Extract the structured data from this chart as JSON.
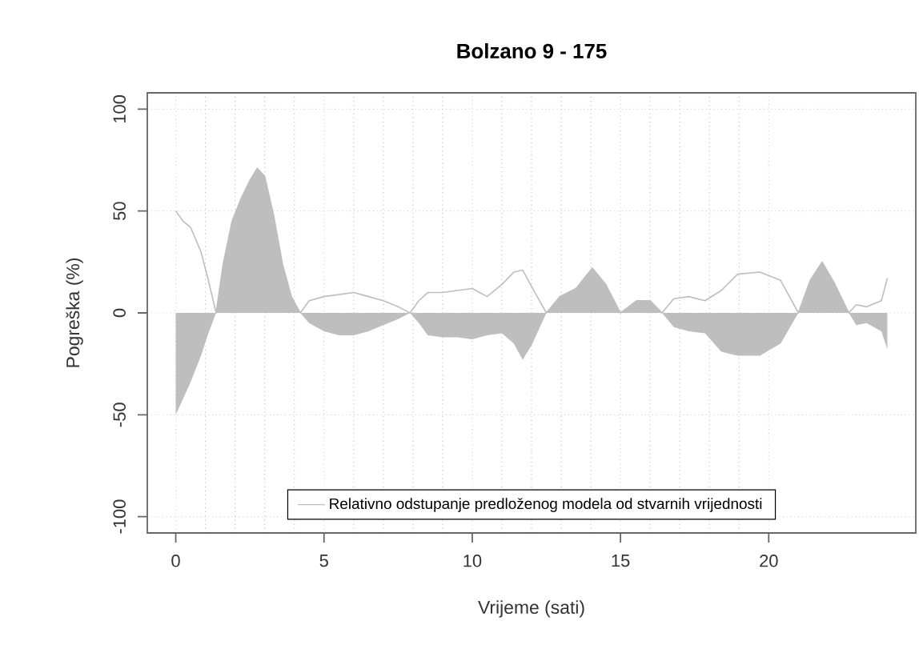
{
  "chart_data": {
    "type": "line",
    "title": "Bolzano 9 - 175",
    "xlabel": "Vrijeme (sati)",
    "ylabel": "Pogreška (%)",
    "x": [
      0,
      0.25,
      0.5,
      0.85,
      1.1,
      1.36,
      1.6,
      1.9,
      2.2,
      2.5,
      2.75,
      3.0,
      3.3,
      3.6,
      3.9,
      4.2,
      4.5,
      5.0,
      5.5,
      6.0,
      6.5,
      7.0,
      7.5,
      7.9,
      8.2,
      8.5,
      9.0,
      9.5,
      10.0,
      10.5,
      11.0,
      11.4,
      11.7,
      12.0,
      12.5,
      12.95,
      13.5,
      14.05,
      14.5,
      15.0,
      15.55,
      16.0,
      16.4,
      16.8,
      17.3,
      17.85,
      18.4,
      18.95,
      19.7,
      20.4,
      21.0,
      21.4,
      21.8,
      22.2,
      22.7,
      22.95,
      23.3,
      23.8,
      24.0
    ],
    "series": [
      {
        "type": "area",
        "color": "#bebebe",
        "values": [
          -50,
          -42,
          -34,
          -21,
          -10,
          0,
          24,
          45,
          56,
          65,
          71,
          67,
          48,
          24,
          8,
          0,
          -5,
          -9,
          -11,
          -11,
          -9,
          -6,
          -3,
          0,
          -5,
          -11,
          -12,
          -12,
          -13,
          -11,
          -10,
          -15,
          -23,
          -16,
          0,
          8,
          12,
          22,
          14,
          0,
          6,
          6,
          0,
          -7,
          -9,
          -10,
          -19,
          -21,
          -21,
          -15,
          0,
          16,
          25,
          15,
          0,
          -6,
          -5,
          -9,
          -18
        ]
      },
      {
        "name": "Relativno odstupanje predloženog modela od stvarnih vrijednosti",
        "color": "#bebebe",
        "values": [
          50,
          45,
          42,
          30,
          16,
          0,
          24,
          45,
          56,
          65,
          71,
          67,
          48,
          24,
          8,
          0,
          6,
          8,
          9,
          10,
          8,
          6,
          3,
          0,
          6,
          10,
          10,
          11,
          12,
          8,
          14,
          20,
          21,
          13,
          0,
          8,
          12,
          22,
          14,
          0,
          6,
          6,
          0,
          7,
          8,
          6,
          11,
          19,
          20,
          16,
          0,
          16,
          25,
          15,
          0,
          4,
          3,
          6,
          17
        ]
      }
    ],
    "xlim": [
      -0.96,
      24.96
    ],
    "ylim": [
      -108,
      108
    ],
    "xticks": [
      0,
      5,
      10,
      15,
      20
    ],
    "yticks": [
      -100,
      -50,
      0,
      50,
      100
    ],
    "grid": true,
    "legend": "bottom"
  }
}
